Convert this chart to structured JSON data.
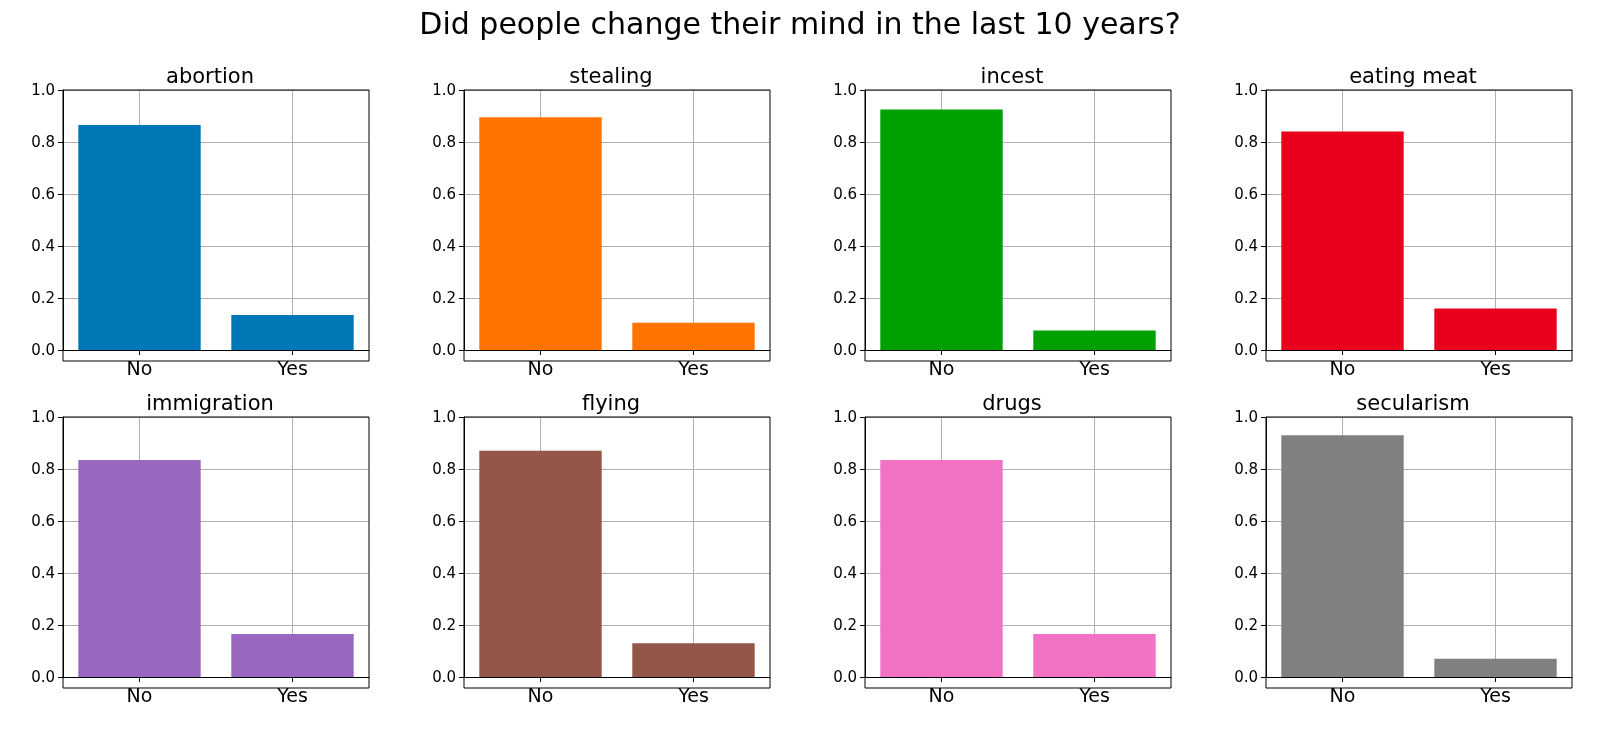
{
  "chart_data": [
    {
      "type": "bar",
      "title": "abortion",
      "annotations": [
        "Did people change their mind in the last 10 years?"
      ],
      "categories": [
        "No",
        "Yes"
      ],
      "values": [
        0.865,
        0.135
      ],
      "color": "#0077b7",
      "ylim": [
        0,
        1
      ],
      "yticks": [
        {
          "value": 0,
          "label": "0.0"
        },
        {
          "value": 0.2,
          "label": "0.2"
        },
        {
          "value": 0.4,
          "label": "0.4"
        },
        {
          "value": 0.6,
          "label": "0.6"
        },
        {
          "value": 0.8,
          "label": "0.8"
        },
        {
          "value": 1,
          "label": "1.0"
        }
      ],
      "grid": true
    },
    {
      "type": "bar",
      "title": "stealing",
      "categories": [
        "No",
        "Yes"
      ],
      "values": [
        0.895,
        0.105
      ],
      "color": "#ff7400",
      "ylim": [
        0,
        1
      ],
      "yticks": [
        {
          "value": 0,
          "label": "0.0"
        },
        {
          "value": 0.2,
          "label": "0.2"
        },
        {
          "value": 0.4,
          "label": "0.4"
        },
        {
          "value": 0.6,
          "label": "0.6"
        },
        {
          "value": 0.8,
          "label": "0.8"
        },
        {
          "value": 1,
          "label": "1.0"
        }
      ],
      "grid": true
    },
    {
      "type": "bar",
      "title": "incest",
      "categories": [
        "No",
        "Yes"
      ],
      "values": [
        0.925,
        0.075
      ],
      "color": "#00a000",
      "ylim": [
        0,
        1
      ],
      "yticks": [
        {
          "value": 0,
          "label": "0.0"
        },
        {
          "value": 0.2,
          "label": "0.2"
        },
        {
          "value": 0.4,
          "label": "0.4"
        },
        {
          "value": 0.6,
          "label": "0.6"
        },
        {
          "value": 0.8,
          "label": "0.8"
        },
        {
          "value": 1,
          "label": "1.0"
        }
      ],
      "grid": true
    },
    {
      "type": "bar",
      "title": "eating meat",
      "categories": [
        "No",
        "Yes"
      ],
      "values": [
        0.84,
        0.16
      ],
      "color": "#e8001c",
      "ylim": [
        0,
        1
      ],
      "yticks": [
        {
          "value": 0,
          "label": "0.0"
        },
        {
          "value": 0.2,
          "label": "0.2"
        },
        {
          "value": 0.4,
          "label": "0.4"
        },
        {
          "value": 0.6,
          "label": "0.6"
        },
        {
          "value": 0.8,
          "label": "0.8"
        },
        {
          "value": 1,
          "label": "1.0"
        }
      ],
      "grid": true
    },
    {
      "type": "bar",
      "title": "immigration",
      "categories": [
        "No",
        "Yes"
      ],
      "values": [
        0.835,
        0.165
      ],
      "color": "#9a67c0",
      "ylim": [
        0,
        1
      ],
      "yticks": [
        {
          "value": 0,
          "label": "0.0"
        },
        {
          "value": 0.2,
          "label": "0.2"
        },
        {
          "value": 0.4,
          "label": "0.4"
        },
        {
          "value": 0.6,
          "label": "0.6"
        },
        {
          "value": 0.8,
          "label": "0.8"
        },
        {
          "value": 1,
          "label": "1.0"
        }
      ],
      "grid": true
    },
    {
      "type": "bar",
      "title": "flying",
      "categories": [
        "No",
        "Yes"
      ],
      "values": [
        0.87,
        0.13
      ],
      "color": "#95564a",
      "ylim": [
        0,
        1
      ],
      "yticks": [
        {
          "value": 0,
          "label": "0.0"
        },
        {
          "value": 0.2,
          "label": "0.2"
        },
        {
          "value": 0.4,
          "label": "0.4"
        },
        {
          "value": 0.6,
          "label": "0.6"
        },
        {
          "value": 0.8,
          "label": "0.8"
        },
        {
          "value": 1,
          "label": "1.0"
        }
      ],
      "grid": true
    },
    {
      "type": "bar",
      "title": "drugs",
      "categories": [
        "No",
        "Yes"
      ],
      "values": [
        0.835,
        0.165
      ],
      "color": "#f272c6",
      "ylim": [
        0,
        1
      ],
      "yticks": [
        {
          "value": 0,
          "label": "0.0"
        },
        {
          "value": 0.2,
          "label": "0.2"
        },
        {
          "value": 0.4,
          "label": "0.4"
        },
        {
          "value": 0.6,
          "label": "0.6"
        },
        {
          "value": 0.8,
          "label": "0.8"
        },
        {
          "value": 1,
          "label": "1.0"
        }
      ],
      "grid": true
    },
    {
      "type": "bar",
      "title": "secularism",
      "categories": [
        "No",
        "Yes"
      ],
      "values": [
        0.93,
        0.07
      ],
      "color": "#808080",
      "ylim": [
        0,
        1
      ],
      "yticks": [
        {
          "value": 0,
          "label": "0.0"
        },
        {
          "value": 0.2,
          "label": "0.2"
        },
        {
          "value": 0.4,
          "label": "0.4"
        },
        {
          "value": 0.6,
          "label": "0.6"
        },
        {
          "value": 0.8,
          "label": "0.8"
        },
        {
          "value": 1,
          "label": "1.0"
        }
      ],
      "grid": true
    }
  ]
}
